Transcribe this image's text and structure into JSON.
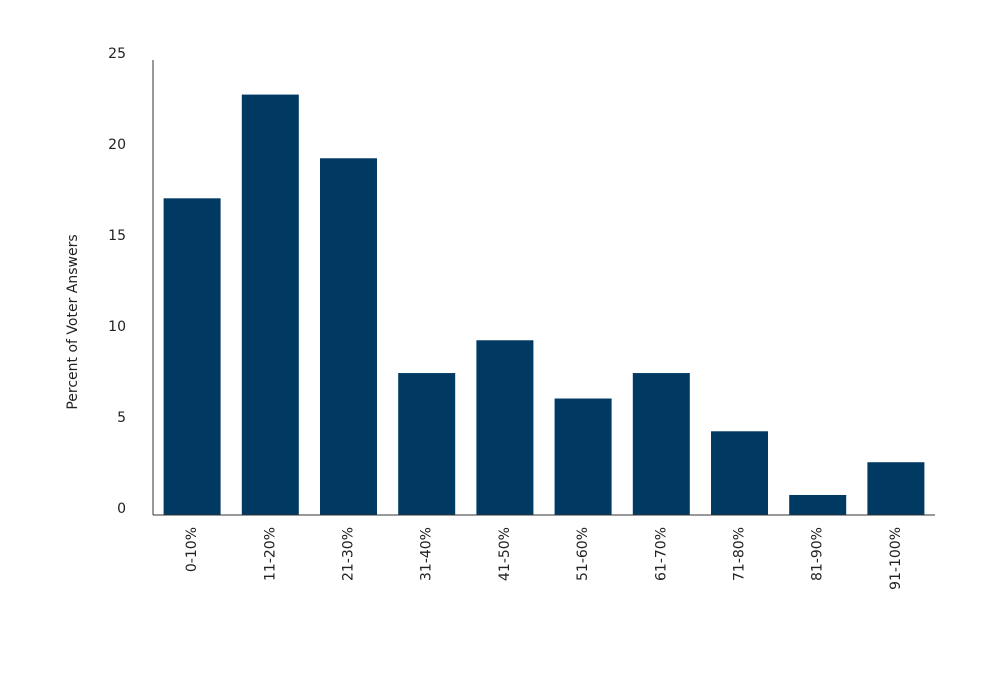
{
  "chart_data": {
    "type": "bar",
    "y_label": "Percent of Voter Answers",
    "categories": [
      "0-10%",
      "11-20%",
      "21-30%",
      "31-40%",
      "41-50%",
      "51-60%",
      "61-70%",
      "71-80%",
      "81-90%",
      "91-100%"
    ],
    "values": [
      17.4,
      23.1,
      19.6,
      7.8,
      9.6,
      6.4,
      7.8,
      4.6,
      1.1,
      2.9
    ],
    "color": "#003a63",
    "ylim": [
      0,
      25
    ],
    "yticks": [
      0,
      5,
      10,
      15,
      20,
      25
    ],
    "grid": false
  }
}
